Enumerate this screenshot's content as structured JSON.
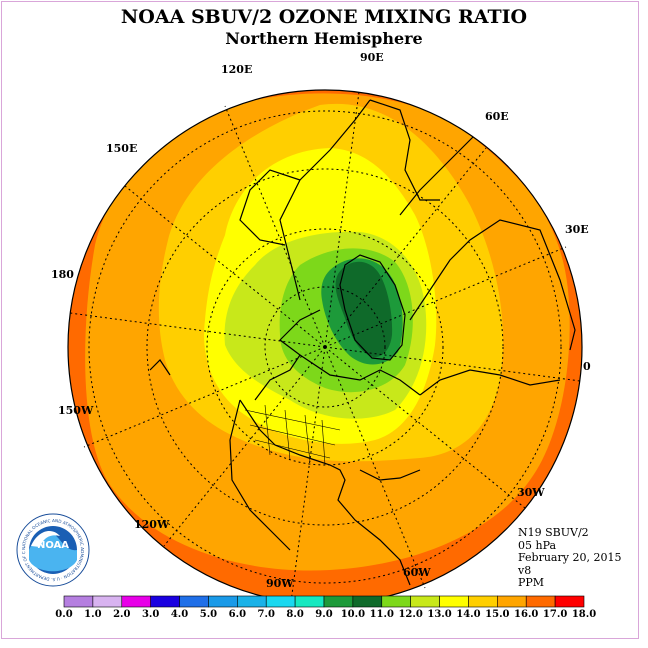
{
  "title": "NOAA SBUV/2 OZONE MIXING RATIO",
  "subtitle": "Northern Hemisphere",
  "longitude_labels": [
    "90E",
    "60E",
    "30E",
    "0",
    "30W",
    "60W",
    "90W",
    "120W",
    "150W",
    "180",
    "150E",
    "120E"
  ],
  "info": {
    "satellite": "N19 SBUV/2",
    "level": "05 hPa",
    "date": "February 20, 2015",
    "version": "v8",
    "units": "PPM"
  },
  "logo_text": "NOAA",
  "logo_ring_text": "NATIONAL OCEANIC AND ATMOSPHERIC ADMINISTRATION · U.S. DEPARTMENT OF COMMERCE",
  "colorbar": {
    "labels": [
      "0.0",
      "1.0",
      "2.0",
      "3.0",
      "4.0",
      "5.0",
      "6.0",
      "7.0",
      "8.0",
      "9.0",
      "10.0",
      "11.0",
      "12.0",
      "13.0",
      "14.0",
      "15.0",
      "16.0",
      "17.0",
      "18.0"
    ],
    "colors": [
      "#b57fe0",
      "#d8b3f0",
      "#e800e8",
      "#1a00e0",
      "#1f6fe8",
      "#1a9ae8",
      "#1ab2e8",
      "#1ad8f0",
      "#16e8c0",
      "#1d9a3a",
      "#0f6a2a",
      "#7dd81a",
      "#c8e81a",
      "#ffff00",
      "#ffcf00",
      "#ffa500",
      "#ff6a00",
      "#ff0000",
      "#8a5a3a"
    ]
  }
}
